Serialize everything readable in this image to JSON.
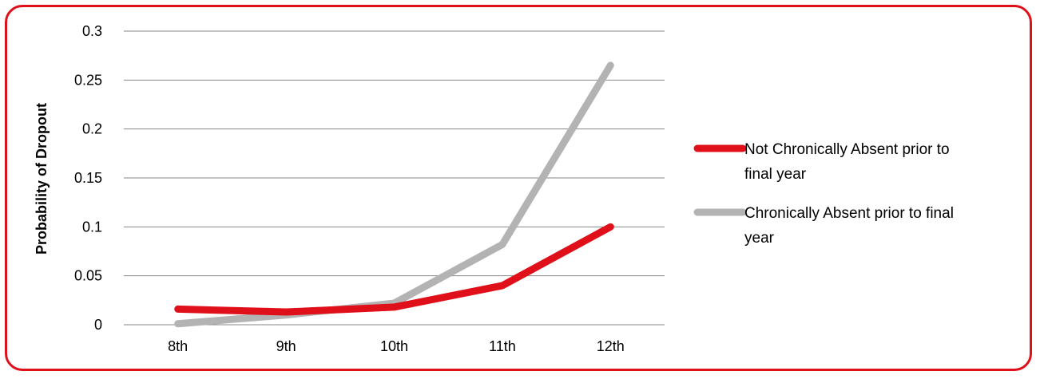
{
  "chart_data": {
    "type": "line",
    "title": "",
    "xlabel": "",
    "ylabel": "Probability of Dropout",
    "categories": [
      "8th",
      "9th",
      "10th",
      "11th",
      "12th"
    ],
    "ylim": [
      0,
      0.3
    ],
    "yticks": [
      "0",
      "0.05",
      "0.1",
      "0.15",
      "0.2",
      "0.25",
      "0.3"
    ],
    "grid": true,
    "legend_position": "right",
    "series": [
      {
        "name": "Not Chronically Absent prior to final year",
        "name_lines": [
          "Not Chronically Absent prior to",
          "final year"
        ],
        "values": [
          0.016,
          0.013,
          0.018,
          0.04,
          0.1
        ],
        "color": "#e0101a"
      },
      {
        "name": "Chronically Absent prior to final year",
        "name_lines": [
          "Chronically Absent prior to final",
          "year"
        ],
        "values": [
          0.001,
          0.01,
          0.022,
          0.082,
          0.265
        ],
        "color": "#b3b3b3"
      }
    ]
  }
}
